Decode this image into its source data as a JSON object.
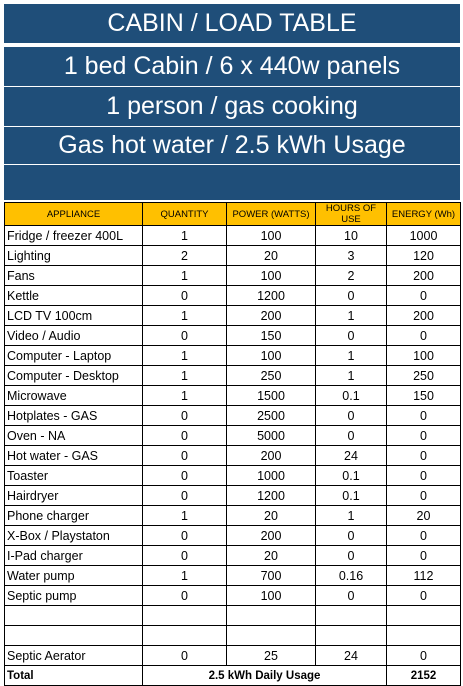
{
  "banners": {
    "title": "CABIN / LOAD TABLE",
    "line2": "1 bed Cabin / 6 x 440w panels",
    "line3": "1 person / gas cooking",
    "line4": "Gas hot water / 2.5 kWh Usage"
  },
  "headers": {
    "appliance": "APPLIANCE",
    "quantity": "QUANTITY",
    "power": "POWER (WATTS)",
    "hours": "HOURS OF USE",
    "energy": "ENERGY (Wh)"
  },
  "rows": [
    {
      "appliance": "Fridge / freezer 400L",
      "quantity": "1",
      "power": "100",
      "hours": "10",
      "energy": "1000"
    },
    {
      "appliance": "Lighting",
      "quantity": "2",
      "power": "20",
      "hours": "3",
      "energy": "120"
    },
    {
      "appliance": "Fans",
      "quantity": "1",
      "power": "100",
      "hours": "2",
      "energy": "200"
    },
    {
      "appliance": "Kettle",
      "quantity": "0",
      "power": "1200",
      "hours": "0",
      "energy": "0"
    },
    {
      "appliance": "LCD  TV 100cm",
      "quantity": "1",
      "power": "200",
      "hours": "1",
      "energy": "200"
    },
    {
      "appliance": "Video / Audio",
      "quantity": "0",
      "power": "150",
      "hours": "0",
      "energy": "0"
    },
    {
      "appliance": "Computer - Laptop",
      "quantity": "1",
      "power": "100",
      "hours": "1",
      "energy": "100"
    },
    {
      "appliance": "Computer - Desktop",
      "quantity": "1",
      "power": "250",
      "hours": "1",
      "energy": "250"
    },
    {
      "appliance": "Microwave",
      "quantity": "1",
      "power": "1500",
      "hours": "0.1",
      "energy": "150"
    },
    {
      "appliance": "Hotplates   - GAS",
      "quantity": "0",
      "power": "2500",
      "hours": "0",
      "energy": "0"
    },
    {
      "appliance": "Oven        - NA",
      "quantity": "0",
      "power": "5000",
      "hours": "0",
      "energy": "0"
    },
    {
      "appliance": "Hot water   - GAS",
      "quantity": "0",
      "power": "200",
      "hours": "24",
      "energy": "0"
    },
    {
      "appliance": "Toaster",
      "quantity": "0",
      "power": "1000",
      "hours": "0.1",
      "energy": "0"
    },
    {
      "appliance": "Hairdryer",
      "quantity": "0",
      "power": "1200",
      "hours": "0.1",
      "energy": "0"
    },
    {
      "appliance": "Phone charger",
      "quantity": "1",
      "power": "20",
      "hours": "1",
      "energy": "20"
    },
    {
      "appliance": "X-Box / Playstaton",
      "quantity": "0",
      "power": "200",
      "hours": "0",
      "energy": "0"
    },
    {
      "appliance": "I-Pad charger",
      "quantity": "0",
      "power": "20",
      "hours": "0",
      "energy": "0"
    },
    {
      "appliance": "Water pump",
      "quantity": "1",
      "power": "700",
      "hours": "0.16",
      "energy": "112"
    },
    {
      "appliance": "Septic pump",
      "quantity": "0",
      "power": "100",
      "hours": "0",
      "energy": "0"
    },
    {
      "appliance": "",
      "quantity": "",
      "power": "",
      "hours": "",
      "energy": ""
    },
    {
      "appliance": "",
      "quantity": "",
      "power": "",
      "hours": "",
      "energy": ""
    },
    {
      "appliance": "Septic Aerator",
      "quantity": "0",
      "power": "25",
      "hours": "24",
      "energy": "0"
    }
  ],
  "total": {
    "label": "Total",
    "usage": "2.5  kWh Daily Usage",
    "energy": "2152"
  },
  "colors": {
    "banner": "#1f4e79",
    "header": "#ffc000"
  }
}
